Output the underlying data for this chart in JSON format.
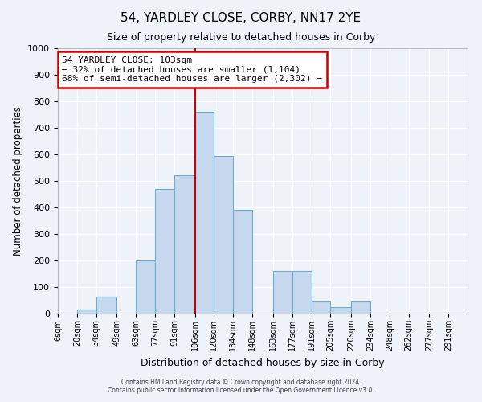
{
  "title": "54, YARDLEY CLOSE, CORBY, NN17 2YE",
  "subtitle": "Size of property relative to detached houses in Corby",
  "xlabel": "Distribution of detached houses by size in Corby",
  "ylabel": "Number of detached properties",
  "footer_line1": "Contains HM Land Registry data © Crown copyright and database right 2024.",
  "footer_line2": "Contains public sector information licensed under the Open Government Licence v3.0.",
  "bin_labels": [
    "6sqm",
    "20sqm",
    "34sqm",
    "49sqm",
    "63sqm",
    "77sqm",
    "91sqm",
    "106sqm",
    "120sqm",
    "134sqm",
    "148sqm",
    "163sqm",
    "177sqm",
    "191sqm",
    "205sqm",
    "220sqm",
    "234sqm",
    "248sqm",
    "262sqm",
    "277sqm",
    "291sqm"
  ],
  "bar_values": [
    0,
    15,
    65,
    0,
    200,
    470,
    520,
    760,
    595,
    390,
    0,
    160,
    160,
    45,
    25,
    45,
    0,
    0,
    0,
    0,
    0
  ],
  "bar_color": "#c5d8ee",
  "bar_edge_color": "#6aaed6",
  "background_color": "#eef2f9",
  "grid_color": "#ffffff",
  "ylim": [
    0,
    1000
  ],
  "yticks": [
    0,
    100,
    200,
    300,
    400,
    500,
    600,
    700,
    800,
    900,
    1000
  ],
  "annotation_line1": "54 YARDLEY CLOSE: 103sqm",
  "annotation_line2": "← 32% of detached houses are smaller (1,104)",
  "annotation_line3": "68% of semi-detached houses are larger (2,302) →",
  "box_edge_color": "#cc0000",
  "vline_color": "#cc0000",
  "vline_x": 106
}
